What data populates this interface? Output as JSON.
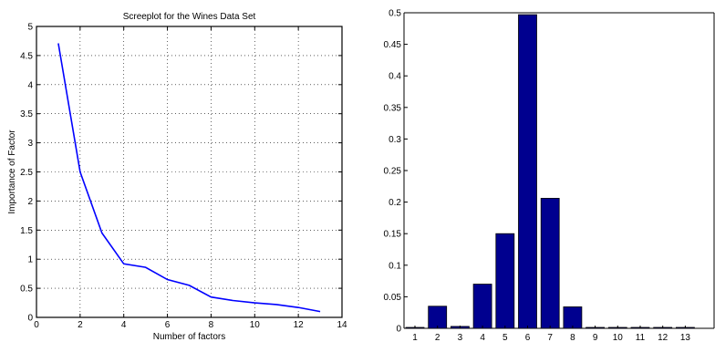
{
  "chart_data": [
    {
      "type": "line",
      "title": "Screeplot for the Wines Data Set",
      "xlabel": "Number of factors",
      "ylabel": "Importance of Factor",
      "xlim": [
        0,
        14
      ],
      "ylim": [
        0,
        5
      ],
      "xticks": [
        0,
        2,
        4,
        6,
        8,
        10,
        12,
        14
      ],
      "yticks": [
        0,
        0.5,
        1,
        1.5,
        2,
        2.5,
        3,
        3.5,
        4,
        4.5,
        5
      ],
      "xtick_labels": [
        "0",
        "2",
        "4",
        "6",
        "8",
        "10",
        "12",
        "14"
      ],
      "ytick_labels": [
        "0",
        "0.5",
        "1",
        "1.5",
        "2",
        "2.5",
        "3",
        "3.5",
        "4",
        "4.5",
        "5"
      ],
      "grid": true,
      "line_color": "#0000ff",
      "series": [
        {
          "x": [
            1,
            2,
            3,
            4,
            5,
            6,
            7,
            8,
            9,
            10,
            11,
            12,
            13
          ],
          "values": [
            4.71,
            2.5,
            1.45,
            0.92,
            0.86,
            0.65,
            0.55,
            0.35,
            0.29,
            0.25,
            0.22,
            0.17,
            0.1
          ]
        }
      ]
    },
    {
      "type": "bar",
      "title": "",
      "xlabel": "",
      "ylabel": "",
      "ylim": [
        0,
        0.5
      ],
      "yticks": [
        0,
        0.05,
        0.1,
        0.15,
        0.2,
        0.25,
        0.3,
        0.35,
        0.4,
        0.45,
        0.5
      ],
      "ytick_labels": [
        "0",
        "0.05",
        "0.1",
        "0.15",
        "0.2",
        "0.25",
        "0.3",
        "0.35",
        "0.4",
        "0.45",
        "0.5"
      ],
      "categories": [
        "1",
        "2",
        "3",
        "4",
        "5",
        "6",
        "7",
        "8",
        "9",
        "10",
        "11",
        "12",
        "13"
      ],
      "values": [
        0.001,
        0.035,
        0.003,
        0.07,
        0.15,
        0.497,
        0.206,
        0.034,
        0.001,
        0.001,
        0.001,
        0.001,
        0.001
      ],
      "grid": false,
      "bar_color": "#00008f"
    }
  ]
}
